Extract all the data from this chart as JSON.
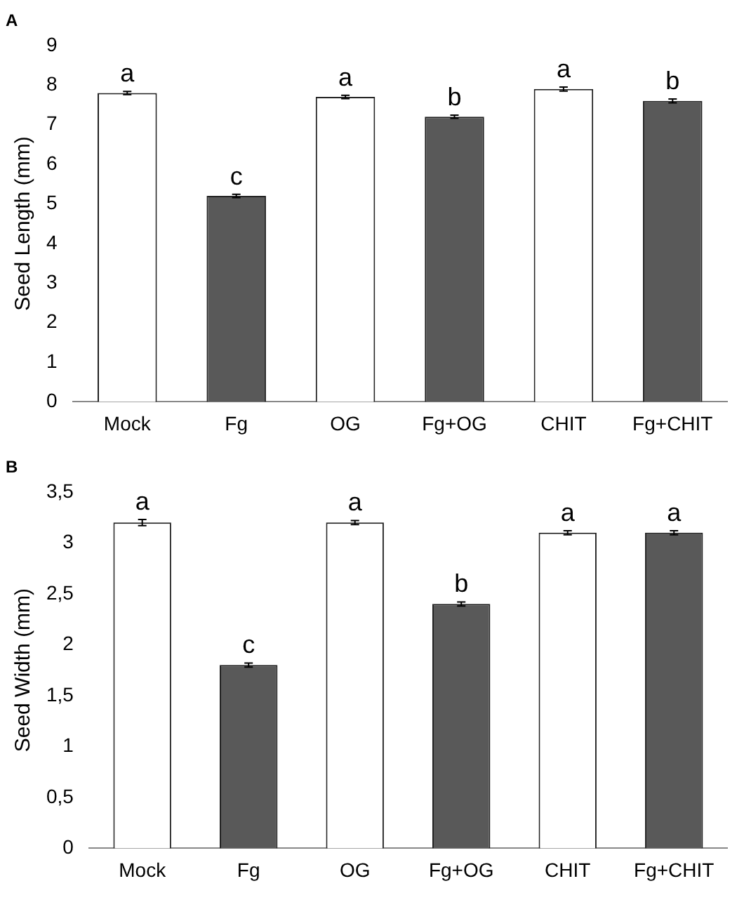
{
  "chart_data": [
    {
      "type": "bar",
      "title": "A",
      "ylabel": "Seed Length (mm)",
      "categories": [
        "Mock",
        "Fg",
        "OG",
        "Fg+OG",
        "CHIT",
        "Fg+CHIT"
      ],
      "values": [
        7.8,
        5.2,
        7.7,
        7.2,
        7.9,
        7.6
      ],
      "errors": [
        0.04,
        0.04,
        0.04,
        0.04,
        0.05,
        0.05
      ],
      "colors": [
        "#ffffff",
        "#595959",
        "#ffffff",
        "#595959",
        "#ffffff",
        "#595959"
      ],
      "ylim": [
        0,
        9
      ],
      "yticks": [
        0,
        1,
        2,
        3,
        4,
        5,
        6,
        7,
        8,
        9
      ],
      "grid": false,
      "legend": false,
      "annotations": [
        {
          "text": "a",
          "x": "Mock",
          "y": 7.84
        },
        {
          "text": "c",
          "x": "Fg",
          "y": 5.24
        },
        {
          "text": "a",
          "x": "OG",
          "y": 7.74
        },
        {
          "text": "b",
          "x": "Fg+OG",
          "y": 7.24
        },
        {
          "text": "a",
          "x": "CHIT",
          "y": 7.95
        },
        {
          "text": "b",
          "x": "Fg+CHIT",
          "y": 7.65
        }
      ]
    },
    {
      "type": "bar",
      "title": "B",
      "ylabel": "Seed Width (mm)",
      "categories": [
        "Mock",
        "Fg",
        "OG",
        "Fg+OG",
        "CHIT",
        "Fg+CHIT"
      ],
      "values": [
        3.2,
        1.8,
        3.2,
        2.4,
        3.1,
        3.1
      ],
      "errors": [
        0.03,
        0.02,
        0.02,
        0.02,
        0.02,
        0.02
      ],
      "colors": [
        "#ffffff",
        "#595959",
        "#ffffff",
        "#595959",
        "#ffffff",
        "#595959"
      ],
      "ylim": [
        0,
        3.5
      ],
      "yticks": [
        0,
        {
          "value": 0.5,
          "label": "0,5"
        },
        1,
        {
          "value": 1.5,
          "label": "1,5"
        },
        2,
        {
          "value": 2.5,
          "label": "2,5"
        },
        3,
        {
          "value": 3.5,
          "label": "3,5"
        }
      ],
      "grid": false,
      "legend": false,
      "annotations": [
        {
          "text": "a",
          "x": "Mock",
          "y": 3.23
        },
        {
          "text": "c",
          "x": "Fg",
          "y": 1.82
        },
        {
          "text": "a",
          "x": "OG",
          "y": 3.22
        },
        {
          "text": "b",
          "x": "Fg+OG",
          "y": 2.42
        },
        {
          "text": "a",
          "x": "CHIT",
          "y": 3.12
        },
        {
          "text": "a",
          "x": "Fg+CHIT",
          "y": 3.12
        }
      ]
    }
  ]
}
